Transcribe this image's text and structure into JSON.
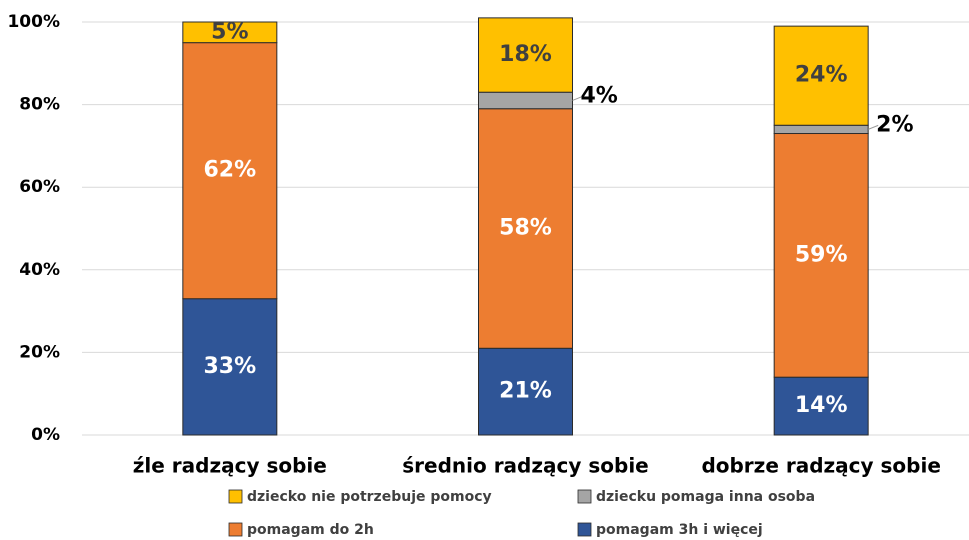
{
  "chart_data": {
    "type": "stacked_bar",
    "categories": [
      "źle radzący sobie",
      "średnio radzący sobie",
      "dobrze radzący sobie"
    ],
    "series": [
      {
        "name": "pomagam 3h i więcej",
        "color": "#2f5597",
        "label_color": "#ffffff",
        "values": [
          33,
          21,
          14
        ],
        "value_labels": [
          "33%",
          "21%",
          "14%"
        ]
      },
      {
        "name": "pomagam do 2h",
        "color": "#ed7d31",
        "label_color": "#ffffff",
        "values": [
          62,
          58,
          59
        ],
        "value_labels": [
          "62%",
          "58%",
          "59%"
        ]
      },
      {
        "name": "dziecku pomaga inna osoba",
        "color": "#a5a5a5",
        "label_color": "#000000",
        "values": [
          0,
          4,
          2
        ],
        "value_labels": [
          null,
          "4%",
          "2%"
        ]
      },
      {
        "name": "dziecko nie potrzebuje pomocy",
        "color": "#ffc000",
        "label_color": "#404040",
        "values": [
          5,
          18,
          24
        ],
        "value_labels": [
          "5%",
          "18%",
          "24%"
        ]
      }
    ],
    "ylim": [
      0,
      100
    ],
    "yticks": [
      {
        "value": 0,
        "label": "0%"
      },
      {
        "value": 20,
        "label": "20%"
      },
      {
        "value": 40,
        "label": "40%"
      },
      {
        "value": 60,
        "label": "60%"
      },
      {
        "value": 80,
        "label": "80%"
      },
      {
        "value": 100,
        "label": "100%"
      }
    ],
    "grid": true
  }
}
